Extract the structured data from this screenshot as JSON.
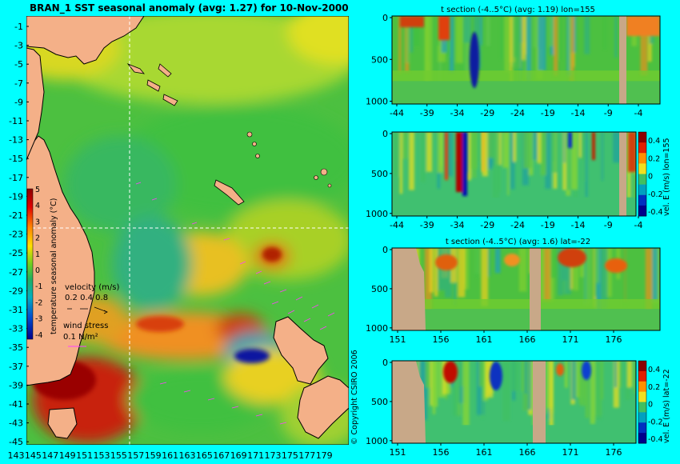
{
  "map": {
    "title": "BRAN_1 SST seasonal anomaly (avg: 1.27) for 10-Nov-2000",
    "lat_labels": [
      "-1",
      "-3",
      "-5",
      "-7",
      "-9",
      "-11",
      "-13",
      "-15",
      "-17",
      "-19",
      "-21",
      "-23",
      "-25",
      "-27",
      "-29",
      "-31",
      "-33",
      "-35",
      "-37",
      "-39",
      "-41",
      "-43",
      "-45"
    ],
    "lon_labels": [
      "143",
      "145",
      "147",
      "149",
      "151",
      "153",
      "155",
      "157",
      "159",
      "161",
      "163",
      "165",
      "167",
      "169",
      "171",
      "173",
      "175",
      "177",
      "179"
    ],
    "colorbar": {
      "ticks": [
        "5",
        "4",
        "3",
        "2",
        "1",
        "0",
        "-1",
        "-2",
        "-3",
        "-4"
      ],
      "label": "temperature seasonal anomaly (°C)"
    },
    "velocity_legend": {
      "title": "velocity (m/s)",
      "values": "0.2 0.4 0.8"
    },
    "wind_legend": {
      "title": "wind stress",
      "value": "0.1 N/m²"
    },
    "copyright": "© Copyright CSIRO 2006",
    "colors": {
      "ocean_base": "#44c444",
      "land": "#f4b088",
      "warm": "#e87800",
      "hot": "#b00000",
      "cool": "#20b0a0",
      "cold": "#0010b0"
    }
  },
  "panels": [
    {
      "title": "t section (-4..5°C) (avg: 1.19) lon=155",
      "x_ticks": [
        "-44",
        "-39",
        "-34",
        "-29",
        "-24",
        "-19",
        "-14",
        "-9",
        "-4"
      ],
      "y_ticks": [
        "0",
        "500",
        "1000"
      ],
      "side_label": "",
      "colorbar_ticks": []
    },
    {
      "title": "",
      "x_ticks": [
        "-44",
        "-39",
        "-34",
        "-29",
        "-24",
        "-19",
        "-14",
        "-9",
        "-4"
      ],
      "y_ticks": [
        "0",
        "500",
        "1000"
      ],
      "side_label": "vel. E (m/s) lon=155",
      "colorbar_ticks": [
        "0.4",
        "0.2",
        "0",
        "-0.2",
        "-0.4"
      ]
    },
    {
      "title": "t section (-4..5°C) (avg: 1.6) lat=-22",
      "x_ticks": [
        "151",
        "156",
        "161",
        "166",
        "171",
        "176"
      ],
      "y_ticks": [
        "0",
        "500",
        "1000"
      ],
      "side_label": "",
      "colorbar_ticks": []
    },
    {
      "title": "",
      "x_ticks": [
        "151",
        "156",
        "161",
        "166",
        "171",
        "176"
      ],
      "y_ticks": [
        "0",
        "500",
        "1000"
      ],
      "side_label": "vel. E (m/s) lat=-22",
      "colorbar_ticks": [
        "0.4",
        "0.2",
        "0",
        "-0.2",
        "-0.4"
      ]
    }
  ],
  "chart_data": [
    {
      "type": "heatmap",
      "title": "BRAN_1 SST seasonal anomaly (avg: 1.27) for 10-Nov-2000",
      "xlabel": "",
      "ylabel": "",
      "xlim": [
        143,
        180
      ],
      "ylim": [
        -45,
        0
      ],
      "colorbar_range": [
        -4,
        5
      ],
      "colorbar_label": "temperature seasonal anomaly (°C)"
    },
    {
      "type": "heatmap",
      "title": "t section (-4..5°C) (avg: 1.19) lon=155",
      "xlim": [
        -45,
        0
      ],
      "ylim": [
        1050,
        0
      ],
      "colorbar_range": [
        -4,
        5
      ]
    },
    {
      "type": "heatmap",
      "title": "",
      "xlim": [
        -45,
        0
      ],
      "ylim": [
        1050,
        0
      ],
      "colorbar_range": [
        -0.4,
        0.4
      ],
      "colorbar_label": "vel. E (m/s) lon=155"
    },
    {
      "type": "heatmap",
      "title": "t section (-4..5°C) (avg: 1.6) lat=-22",
      "xlim": [
        150,
        180
      ],
      "ylim": [
        1050,
        0
      ],
      "colorbar_range": [
        -4,
        5
      ]
    },
    {
      "type": "heatmap",
      "title": "",
      "xlim": [
        150,
        180
      ],
      "ylim": [
        1050,
        0
      ],
      "colorbar_range": [
        -0.4,
        0.4
      ],
      "colorbar_label": "vel. E (m/s) lat=-22"
    }
  ]
}
